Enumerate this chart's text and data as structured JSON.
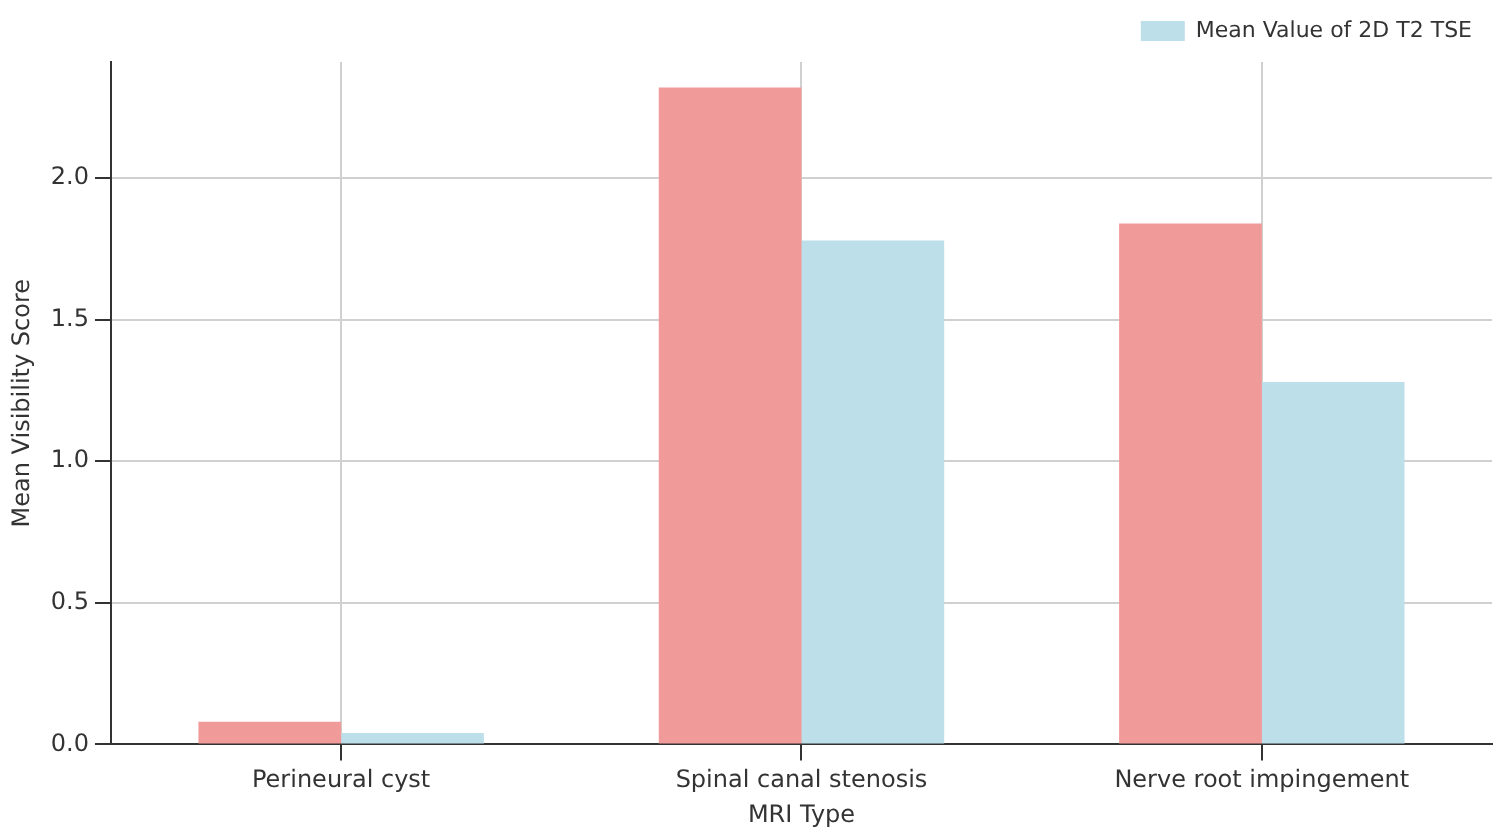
{
  "chart_data": {
    "type": "bar",
    "xlabel": "MRI Type",
    "ylabel": "Mean Visibility Score",
    "categories": [
      "Perineural cyst",
      "Spinal canal stenosis",
      "Nerve root impingement"
    ],
    "series": [
      {
        "color": "#f19a9a",
        "values": [
          0.08,
          2.32,
          1.84
        ]
      },
      {
        "name": "Mean Value of 2D T2 TSE",
        "color": "#bddfe9",
        "values": [
          0.04,
          1.78,
          1.28
        ]
      }
    ],
    "ylim": [
      0,
      2.41
    ],
    "yticks": [
      {
        "value": 0,
        "label": "0.0"
      },
      {
        "value": 0.5,
        "label": "0.5"
      },
      {
        "value": 1,
        "label": "1.0"
      },
      {
        "value": 1.5,
        "label": "1.5"
      },
      {
        "value": 2,
        "label": "2.0"
      }
    ],
    "grid": true,
    "legend": "top right"
  }
}
